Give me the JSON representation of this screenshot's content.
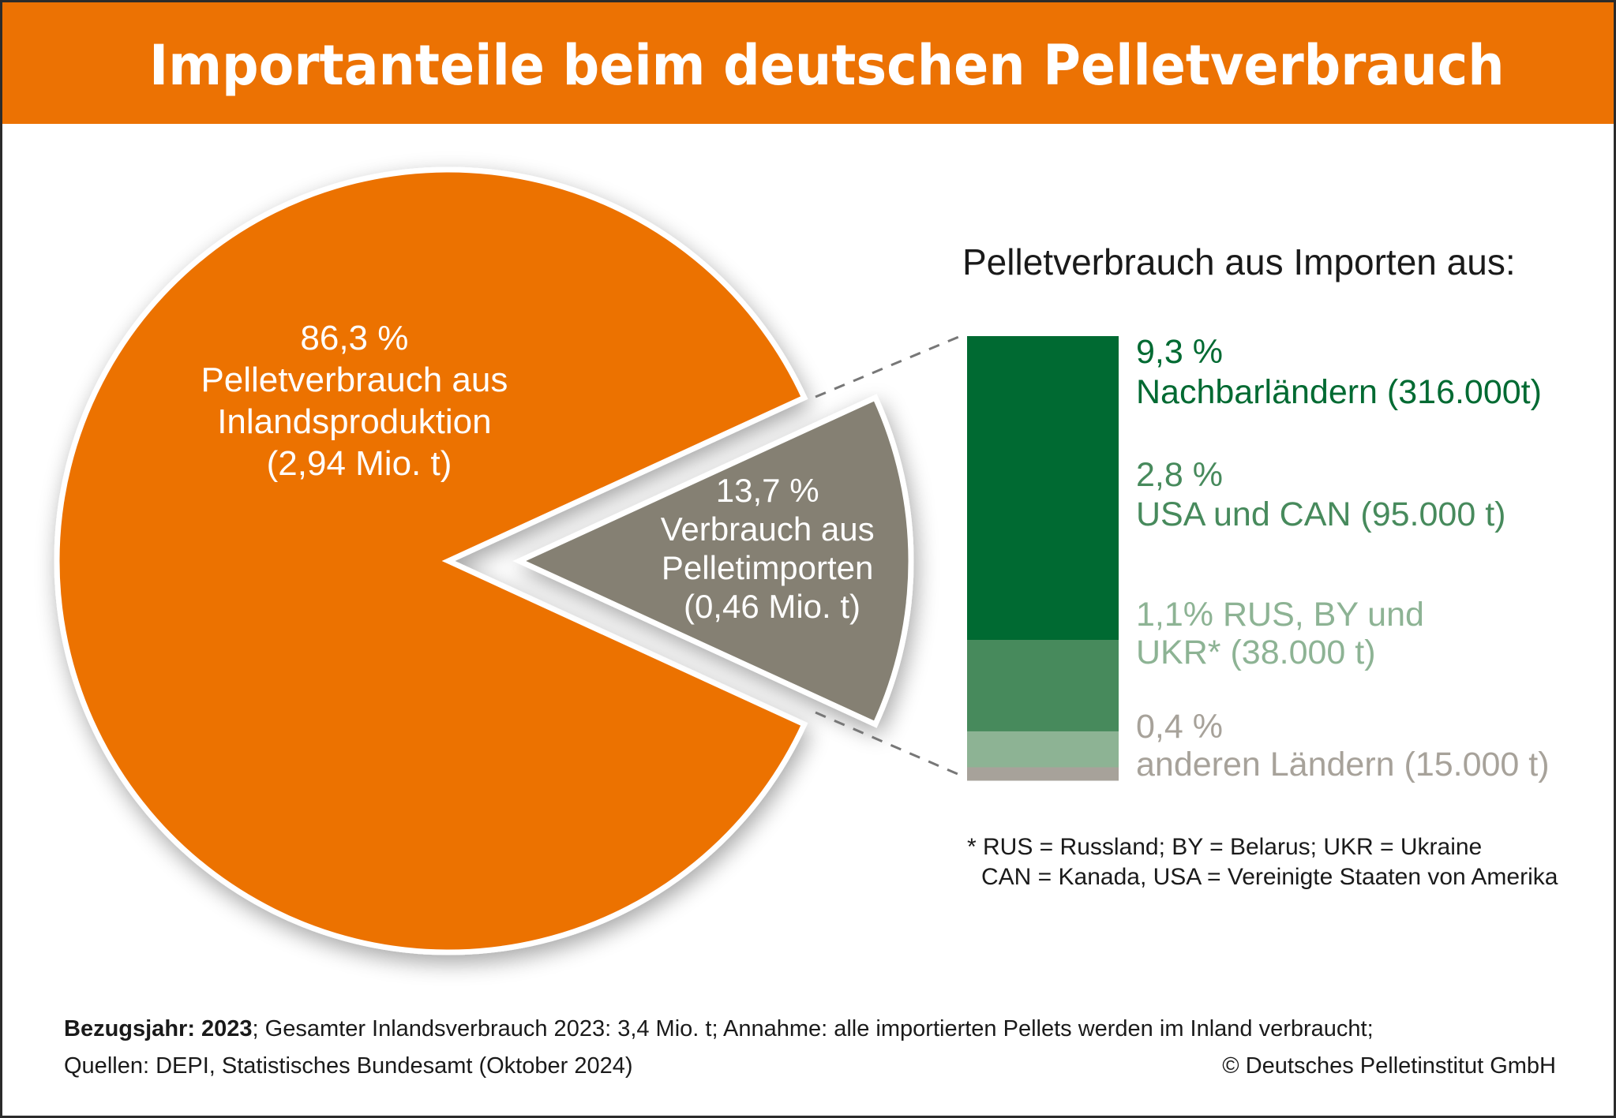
{
  "header": {
    "title": "Importanteile beim deutschen Pelletverbrauch"
  },
  "colors": {
    "header": "#ec7203",
    "domestic": "#ec7203",
    "imports": "#858073",
    "neighbours": "#006a32",
    "usa_can": "#478a5c",
    "rus_by_ukr": "#8db394",
    "other": "#a7a29a",
    "dash": "#777777"
  },
  "chart_data": [
    {
      "type": "pie",
      "title": "Importanteile beim deutschen Pelletverbrauch",
      "unit": "%",
      "slices": [
        {
          "name": "Pelletverbrauch aus Inlandsproduktion",
          "value": 86.3,
          "label_lines": [
            "86,3 %",
            "Pelletverbrauch aus",
            "Inlandsproduktion",
            "(2,94 Mio. t)"
          ]
        },
        {
          "name": "Verbrauch aus Pelletimporten",
          "value": 13.7,
          "exploded": true,
          "label_lines": [
            "13,7 %",
            "Verbrauch aus",
            "Pelletimporten",
            "(0,46 Mio. t)"
          ]
        }
      ]
    },
    {
      "type": "bar",
      "stacked": true,
      "title": "Pelletverbrauch aus Importen aus:",
      "unit": "%",
      "segments": [
        {
          "name": "Nachbarländern",
          "value": 9.3,
          "tonnes": 316000,
          "label_lines": [
            "9,3 %",
            "Nachbarländern (316.000t)"
          ]
        },
        {
          "name": "USA und CAN",
          "value": 2.8,
          "tonnes": 95000,
          "label_lines": [
            "2,8 %",
            "USA und CAN (95.000 t)"
          ]
        },
        {
          "name": "RUS, BY und UKR*",
          "value": 1.1,
          "tonnes": 38000,
          "label_lines": [
            "1,1% RUS, BY und",
            "UKR* (38.000 t)"
          ]
        },
        {
          "name": "anderen Ländern",
          "value": 0.4,
          "tonnes": 15000,
          "label_lines": [
            "0,4 %",
            "anderen Ländern (15.000 t)"
          ]
        }
      ]
    }
  ],
  "footnote": {
    "line1": "* RUS = Russland;  BY = Belarus;  UKR = Ukraine",
    "line2": "CAN = Kanada,  USA = Vereinigte Staaten von Amerika"
  },
  "footer": {
    "ref_year_label": "Bezugsjahr: 2023",
    "line1_rest": "; Gesamter Inlandsverbrauch 2023: 3,4 Mio. t; Annahme: alle importierten Pellets werden im Inland verbraucht;",
    "sources": "Quellen: DEPI, Statistisches Bundesamt (Oktober 2024)",
    "copyright": "© Deutsches Pelletinstitut GmbH"
  }
}
